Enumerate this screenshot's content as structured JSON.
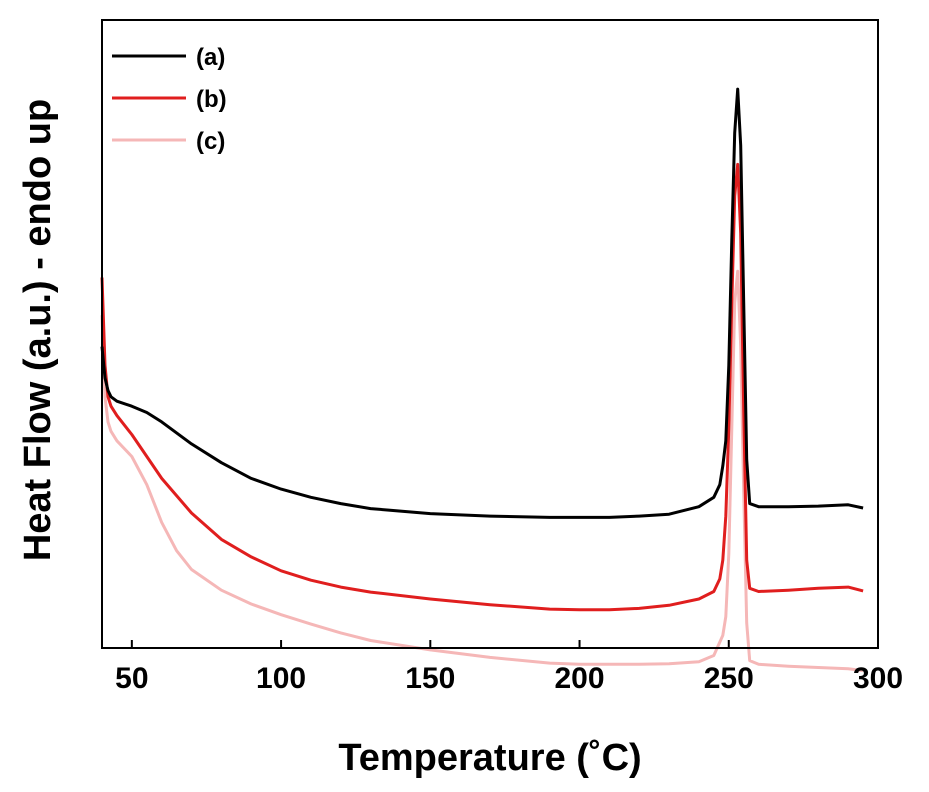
{
  "chart_data": {
    "type": "line",
    "title": "",
    "xlabel": "Temperature (˚C)",
    "ylabel": "Heat Flow (a.u.) - endo up",
    "xlim": [
      40,
      300
    ],
    "ylim": [
      0,
      100
    ],
    "xticks": [
      50,
      100,
      150,
      200,
      250,
      300
    ],
    "xtick_labels": [
      "50",
      "100",
      "150",
      "200",
      "250",
      "300"
    ],
    "yticks_shown": false,
    "grid": false,
    "legend_position": "top-left",
    "series": [
      {
        "name": "(a)",
        "color": "#000000",
        "x": [
          40,
          41,
          42,
          43,
          45,
          50,
          55,
          60,
          70,
          80,
          90,
          100,
          110,
          120,
          130,
          150,
          170,
          190,
          200,
          210,
          220,
          230,
          240,
          245,
          247,
          248,
          249,
          250,
          251,
          252,
          253,
          254,
          255,
          256,
          257,
          260,
          270,
          280,
          290,
          295
        ],
        "y": [
          48,
          43,
          41,
          40,
          39.3,
          38.5,
          37.5,
          36,
          32.5,
          29.5,
          27,
          25.3,
          24,
          23,
          22.2,
          21.4,
          21,
          20.8,
          20.8,
          20.8,
          21,
          21.3,
          22.5,
          24,
          26,
          29,
          33,
          45,
          65,
          82,
          89,
          80,
          55,
          30,
          23,
          22.5,
          22.5,
          22.6,
          22.8,
          22.3
        ]
      },
      {
        "name": "(b)",
        "color": "#e01e1e",
        "x": [
          40,
          41,
          42,
          43,
          45,
          50,
          55,
          60,
          70,
          80,
          90,
          100,
          110,
          120,
          130,
          150,
          170,
          190,
          200,
          210,
          220,
          230,
          240,
          245,
          247,
          248,
          249,
          250,
          251,
          252,
          253,
          254,
          255,
          256,
          257,
          260,
          270,
          280,
          290,
          295
        ],
        "y": [
          59,
          45,
          40,
          38.5,
          37,
          34,
          30.5,
          27,
          21.5,
          17.3,
          14.5,
          12.3,
          10.8,
          9.7,
          8.9,
          7.8,
          6.9,
          6.2,
          6.1,
          6.1,
          6.3,
          6.8,
          7.8,
          9,
          11,
          14,
          21,
          35,
          55,
          72,
          77,
          66,
          38,
          14,
          9.5,
          9,
          9.2,
          9.5,
          9.7,
          9.1
        ]
      },
      {
        "name": "(c)",
        "color": "#f5b7b7",
        "x": [
          40,
          41,
          42,
          43,
          45,
          50,
          55,
          60,
          65,
          70,
          80,
          90,
          100,
          110,
          120,
          130,
          150,
          170,
          190,
          200,
          210,
          220,
          230,
          240,
          245,
          248,
          249,
          250,
          251,
          252,
          253,
          254,
          255,
          256,
          257,
          260,
          270,
          280,
          290,
          295
        ],
        "y": [
          53,
          40,
          36,
          34.5,
          33,
          30.5,
          26,
          20,
          15.5,
          12.5,
          9.2,
          7,
          5.3,
          3.8,
          2.4,
          1.2,
          -0.3,
          -1.5,
          -2.4,
          -2.6,
          -2.6,
          -2.6,
          -2.5,
          -2.2,
          -1.2,
          2,
          5,
          15,
          35,
          55,
          60,
          48,
          25,
          4,
          -2,
          -2.6,
          -2.9,
          -3.1,
          -3.3,
          -3.6
        ]
      }
    ]
  }
}
